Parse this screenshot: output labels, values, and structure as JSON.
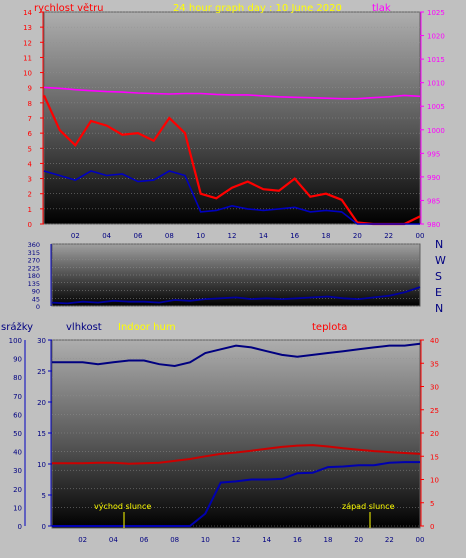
{
  "colors": {
    "page_bg": "#c0c0c0",
    "plot_top": "#a8a8a8",
    "plot_bottom": "#000000",
    "wind": "#ff0000",
    "wind_avg": "#0000c0",
    "pressure": "#ff00ff",
    "direction": "#0000a0",
    "humidity": "#000080",
    "indoor_hum": "#ffff00",
    "temperature": "#cc0000",
    "rain": "#0000b0",
    "left_axis": "#ff0000",
    "right_axis_pressure": "#ff00ff",
    "right_axis_temp": "#ff0000",
    "blue_axis": "#0000c0",
    "title": "#ffff00",
    "sun_labels": "#ffff00"
  },
  "header": {
    "wind_title": "rychlost větru",
    "graph_title": "24 hour graph day : 10 June 2020",
    "pressure_title": "tlak"
  },
  "compass": [
    "N",
    "W",
    "S",
    "E",
    "N"
  ],
  "legend2": {
    "rain": "srážky",
    "humidity": "vlhkost",
    "indoor_hum": "Indoor hum",
    "temperature": "teplota"
  },
  "sun": {
    "sunrise": "východ slunce",
    "sunset": "západ slunce"
  },
  "x_ticks": [
    "02",
    "04",
    "06",
    "08",
    "10",
    "12",
    "14",
    "16",
    "18",
    "20",
    "22",
    "00"
  ],
  "chart_data": [
    {
      "type": "line",
      "title": "24 hour graph day : 10 June 2020",
      "x": [
        0,
        1,
        2,
        3,
        4,
        5,
        6,
        7,
        8,
        9,
        10,
        11,
        12,
        13,
        14,
        15,
        16,
        17,
        18,
        19,
        20,
        21,
        22,
        23,
        24
      ],
      "y_left_label": "rychlost větru",
      "y_left_ticks": [
        0,
        1,
        2,
        3,
        4,
        5,
        6,
        7,
        8,
        9,
        10,
        11,
        12,
        13,
        14
      ],
      "y_left_lim": [
        0,
        14
      ],
      "y_right_label": "tlak",
      "y_right_ticks": [
        980,
        985,
        990,
        995,
        1000,
        1005,
        1010,
        1015,
        1020,
        1025
      ],
      "y_right_lim": [
        980,
        1025
      ],
      "series": [
        {
          "axis": "left",
          "values": [
            8.5,
            6.2,
            5.2,
            6.8,
            6.5,
            5.9,
            6.0,
            5.5,
            7.0,
            6.0,
            2.0,
            1.7,
            2.4,
            2.8,
            2.3,
            2.2,
            3.0,
            1.8,
            2.0,
            1.6,
            0.1,
            0.0,
            0.0,
            0.0,
            0.5
          ]
        },
        {
          "axis": "left",
          "values": [
            3.5,
            3.2,
            2.9,
            3.5,
            3.2,
            3.3,
            2.8,
            2.9,
            3.5,
            3.2,
            0.8,
            0.9,
            1.2,
            1.0,
            0.9,
            1.0,
            1.1,
            0.8,
            0.9,
            0.8,
            0.0,
            0.0,
            0.0,
            0.0,
            0.0
          ]
        },
        {
          "axis": "right",
          "values": [
            1009.0,
            1008.8,
            1008.5,
            1008.3,
            1008.1,
            1008.0,
            1007.8,
            1007.7,
            1007.6,
            1007.7,
            1007.7,
            1007.5,
            1007.4,
            1007.4,
            1007.2,
            1007.0,
            1006.9,
            1006.8,
            1006.7,
            1006.6,
            1006.6,
            1006.8,
            1007.0,
            1007.3,
            1007.1
          ]
        }
      ]
    },
    {
      "type": "line",
      "y_ticks": [
        0,
        45,
        90,
        135,
        180,
        225,
        270,
        315,
        360
      ],
      "y_lim": [
        0,
        360
      ],
      "x": [
        0,
        1,
        2,
        3,
        4,
        5,
        6,
        7,
        8,
        9,
        10,
        11,
        12,
        13,
        14,
        15,
        16,
        17,
        18,
        19,
        20,
        21,
        22,
        23,
        24
      ],
      "series": [
        {
          "values": [
            20,
            15,
            25,
            20,
            30,
            25,
            25,
            20,
            35,
            30,
            40,
            45,
            50,
            40,
            45,
            40,
            45,
            50,
            55,
            45,
            40,
            50,
            60,
            80,
            110
          ]
        }
      ]
    },
    {
      "type": "line",
      "x": [
        0,
        1,
        2,
        3,
        4,
        5,
        6,
        7,
        8,
        9,
        10,
        11,
        12,
        13,
        14,
        15,
        16,
        17,
        18,
        19,
        20,
        21,
        22,
        23,
        24
      ],
      "y_left_ticks": [
        0,
        10,
        20,
        30,
        40,
        50,
        60,
        70,
        80,
        90,
        100
      ],
      "y_left_lim": [
        0,
        100
      ],
      "y_rain_ticks": [
        0,
        5,
        10,
        15,
        20,
        25,
        30
      ],
      "y_rain_lim": [
        0,
        30
      ],
      "y_right_ticks": [
        0,
        5,
        10,
        15,
        20,
        25,
        30,
        35,
        40
      ],
      "y_right_lim": [
        0,
        40
      ],
      "series": [
        {
          "name": "vlhkost",
          "axis": "left",
          "values": [
            88,
            88,
            88,
            87,
            88,
            89,
            89,
            87,
            86,
            88,
            93,
            95,
            97,
            96,
            94,
            92,
            91,
            92,
            93,
            94,
            95,
            96,
            97,
            97,
            98
          ]
        },
        {
          "name": "teplota",
          "axis": "right",
          "values": [
            13.5,
            13.5,
            13.5,
            13.6,
            13.6,
            13.4,
            13.5,
            13.6,
            14.0,
            14.4,
            15.0,
            15.5,
            15.8,
            16.2,
            16.6,
            17.0,
            17.3,
            17.4,
            17.1,
            16.7,
            16.4,
            16.1,
            15.9,
            15.7,
            15.5
          ]
        },
        {
          "name": "srážky",
          "axis": "rain",
          "values": [
            0,
            0,
            0,
            0,
            0,
            0,
            0,
            0,
            0,
            0,
            2,
            7,
            7.2,
            7.5,
            7.5,
            7.6,
            8.5,
            8.6,
            9.5,
            9.6,
            9.8,
            9.8,
            10.2,
            10.3,
            10.3
          ]
        }
      ]
    }
  ]
}
